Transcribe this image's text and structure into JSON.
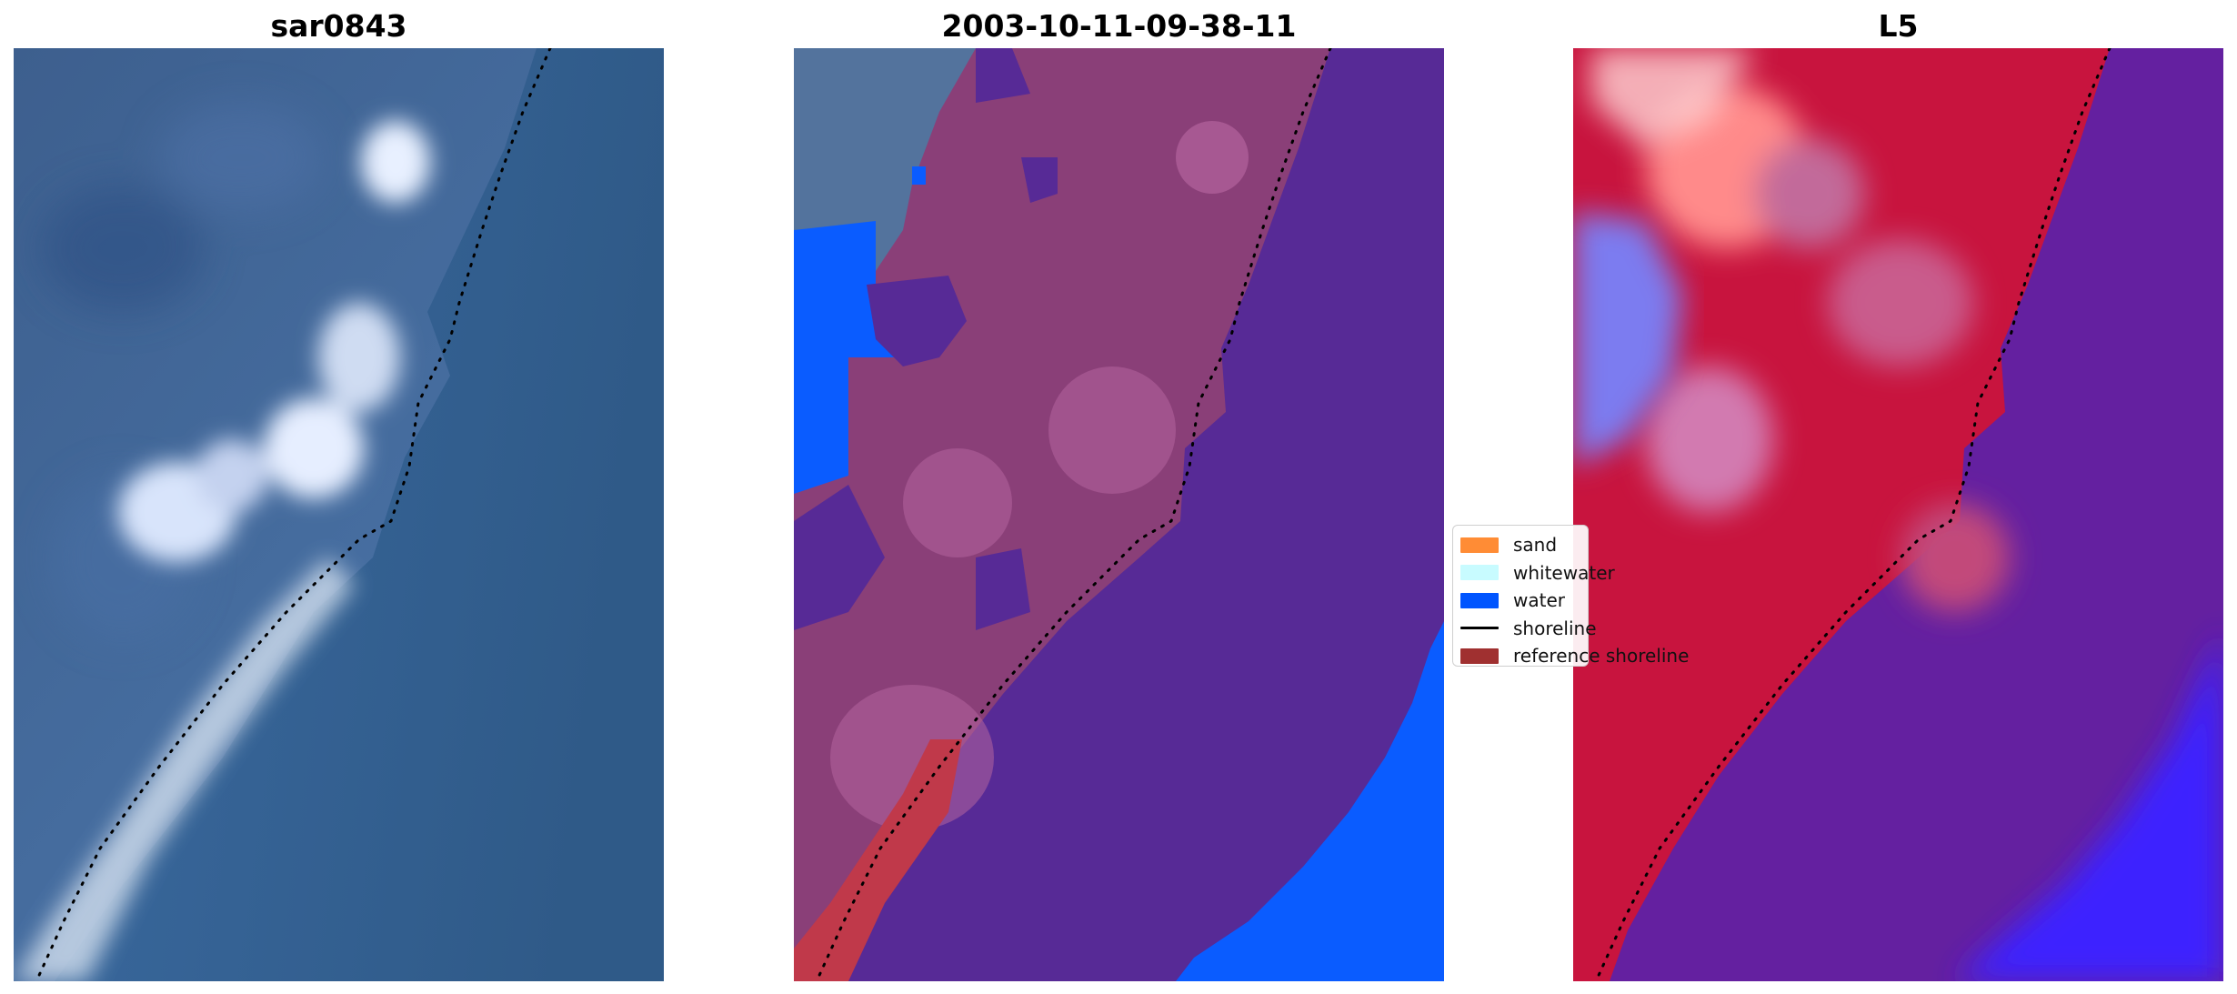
{
  "panels": [
    {
      "title": "sar0843",
      "kind": "rgb"
    },
    {
      "title": "2003-10-11-09-38-11",
      "kind": "classified"
    },
    {
      "title": "L5",
      "kind": "index"
    }
  ],
  "legend": {
    "items": [
      {
        "label": "sand",
        "color": "#ff8c35",
        "kind": "patch"
      },
      {
        "label": "whitewater",
        "color": "#c8fbff",
        "kind": "patch"
      },
      {
        "label": "water",
        "color": "#0055ff",
        "kind": "patch"
      },
      {
        "label": "shoreline",
        "color": "#000000",
        "kind": "line"
      },
      {
        "label": "reference shoreline",
        "color": "#a03030",
        "kind": "patch"
      }
    ]
  },
  "colors": {
    "land": "#8f3f78",
    "water_class": "#0a5cff",
    "sea_rgb": "#35699a",
    "index_land": "#c8143e",
    "index_sea": "#6420a0",
    "reference_patch": "#c0394a",
    "shoreline": "#000000"
  }
}
